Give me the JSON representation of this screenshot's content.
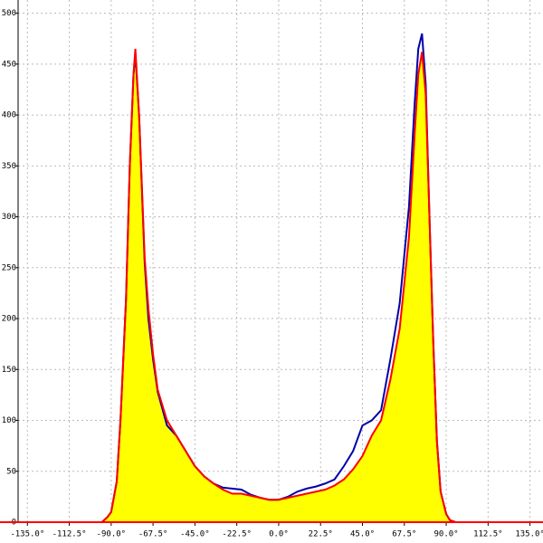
{
  "chart_data": {
    "type": "area",
    "x": [
      -95,
      -92,
      -90,
      -87,
      -85,
      -82,
      -80,
      -78,
      -77,
      -75,
      -72,
      -70,
      -67.5,
      -65,
      -60,
      -55,
      -50,
      -45,
      -40,
      -35,
      -30,
      -25,
      -20,
      -15,
      -10,
      -5,
      0,
      5,
      10,
      15,
      20,
      25,
      30,
      35,
      40,
      45,
      50,
      55,
      60,
      65,
      70,
      73,
      75,
      77,
      79,
      81,
      83,
      85,
      87,
      90,
      92,
      95
    ],
    "series": [
      {
        "color": "#0000aa",
        "values": [
          0,
          5,
          10,
          40,
          100,
          220,
          350,
          440,
          460,
          400,
          255,
          200,
          160,
          128,
          95,
          85,
          70,
          55,
          45,
          38,
          34,
          33,
          32,
          27,
          24,
          22,
          22,
          25,
          30,
          33,
          35,
          38,
          42,
          55,
          70,
          95,
          100,
          110,
          160,
          215,
          310,
          410,
          465,
          480,
          430,
          300,
          180,
          80,
          30,
          8,
          2,
          0
        ]
      },
      {
        "color": "#ff0000",
        "fill": "#ffff00",
        "values": [
          0,
          5,
          10,
          40,
          100,
          220,
          350,
          440,
          465,
          400,
          260,
          210,
          165,
          130,
          100,
          85,
          70,
          55,
          45,
          38,
          32,
          28,
          28,
          26,
          24,
          22,
          22,
          24,
          26,
          28,
          30,
          32,
          36,
          42,
          52,
          65,
          85,
          100,
          140,
          190,
          280,
          380,
          440,
          462,
          420,
          300,
          180,
          80,
          30,
          8,
          2,
          0
        ]
      }
    ],
    "xlim": [
      -140,
      142
    ],
    "ylim": [
      0,
      513
    ],
    "xticks": [
      {
        "value": -135,
        "label": "-135.0°"
      },
      {
        "value": -112.5,
        "label": "-112.5°"
      },
      {
        "value": -90,
        "label": "-90.0°"
      },
      {
        "value": -67.5,
        "label": "-67.5°"
      },
      {
        "value": -45,
        "label": "-45.0°"
      },
      {
        "value": -22.5,
        "label": "-22.5°"
      },
      {
        "value": 0,
        "label": "0.0°"
      },
      {
        "value": 22.5,
        "label": "22.5°"
      },
      {
        "value": 45,
        "label": "45.0°"
      },
      {
        "value": 67.5,
        "label": "67.5°"
      },
      {
        "value": 90,
        "label": "90.0°"
      },
      {
        "value": 112.5,
        "label": "112.5°"
      },
      {
        "value": 135,
        "label": "135.0°"
      }
    ],
    "yticks": [
      0,
      50,
      100,
      150,
      200,
      250,
      300,
      350,
      400,
      450,
      500
    ],
    "grid": true
  }
}
